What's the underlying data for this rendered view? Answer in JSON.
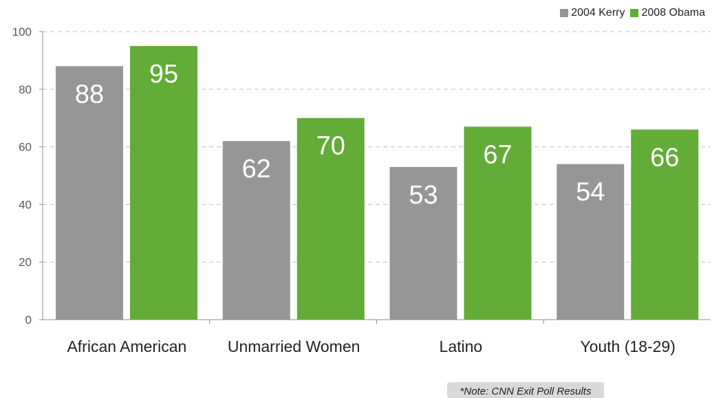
{
  "chart_data": {
    "type": "bar",
    "categories": [
      "African American",
      "Unmarried Women",
      "Latino",
      "Youth (18-29)"
    ],
    "series": [
      {
        "name": "2004 Kerry",
        "values": [
          88,
          62,
          53,
          54
        ],
        "color": "#969696"
      },
      {
        "name": "2008 Obama",
        "values": [
          95,
          70,
          67,
          66
        ],
        "color": "#62ac37"
      }
    ],
    "ylim": [
      0,
      100
    ],
    "yticks": [
      0,
      20,
      40,
      60,
      80,
      100
    ],
    "grid": true,
    "legend_position": "top-right",
    "title": "",
    "xlabel": "",
    "ylabel": ""
  },
  "note": "*Note: CNN Exit Poll Results"
}
